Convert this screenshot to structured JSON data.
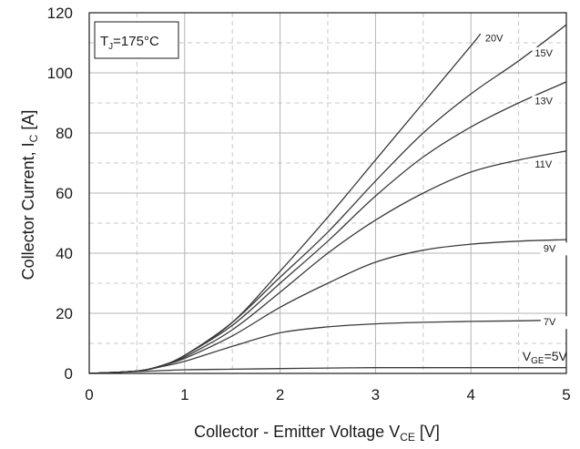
{
  "chart_data": {
    "type": "line",
    "xlabel": "Collector - Emitter Voltage V",
    "xlabel_sub": "CE",
    "xlabel_unit": " [V]",
    "ylabel": "Collector Current, I",
    "ylabel_sub": "C",
    "ylabel_unit": " [A]",
    "xlim": [
      0,
      5
    ],
    "ylim": [
      0,
      120
    ],
    "xticks": [
      "0",
      "1",
      "2",
      "3",
      "4",
      "5"
    ],
    "yticks": [
      "0",
      "20",
      "40",
      "60",
      "80",
      "100",
      "120"
    ],
    "grid": true,
    "annotation": {
      "prefix": "T",
      "sub": "J",
      "suffix": "=175°C"
    },
    "series": [
      {
        "name": "20V",
        "label": "20V",
        "x": [
          0,
          0.5,
          0.75,
          1,
          1.5,
          2,
          2.5,
          3,
          3.5,
          4,
          4.1
        ],
        "y": [
          0,
          0.8,
          2.5,
          6,
          17,
          34,
          52,
          71,
          90,
          109,
          113
        ]
      },
      {
        "name": "15V",
        "label": "15V",
        "x": [
          0,
          0.5,
          0.75,
          1,
          1.5,
          2,
          2.5,
          3,
          3.5,
          4,
          4.5,
          5
        ],
        "y": [
          0,
          0.8,
          2.5,
          6,
          17,
          32,
          47,
          64,
          80,
          93,
          104,
          116
        ]
      },
      {
        "name": "13V",
        "label": "13V",
        "x": [
          0,
          0.5,
          0.75,
          1,
          1.5,
          2,
          2.5,
          3,
          3.5,
          4,
          4.5,
          5
        ],
        "y": [
          0,
          0.8,
          2.5,
          6,
          16,
          30,
          44,
          59,
          72,
          82,
          90,
          97
        ]
      },
      {
        "name": "11V",
        "label": "11V",
        "x": [
          0,
          0.5,
          0.75,
          1,
          1.5,
          2,
          2.5,
          3,
          3.5,
          4,
          4.5,
          5
        ],
        "y": [
          0,
          0.8,
          2.5,
          5.5,
          14.5,
          27,
          40,
          51,
          60,
          67,
          71,
          74
        ]
      },
      {
        "name": "9V",
        "label": "9V",
        "x": [
          0,
          0.5,
          0.75,
          1,
          1.5,
          2,
          2.5,
          3,
          3.5,
          4,
          4.5,
          5
        ],
        "y": [
          0,
          0.8,
          2.5,
          5,
          12.5,
          22,
          30,
          37,
          41,
          43,
          44,
          44.5
        ]
      },
      {
        "name": "7V",
        "label": "7V",
        "x": [
          0,
          0.5,
          0.75,
          1,
          1.5,
          2,
          2.5,
          3,
          3.5,
          4,
          4.5,
          5
        ],
        "y": [
          0,
          0.8,
          2.2,
          4,
          9,
          13.5,
          15.5,
          16.5,
          17,
          17.3,
          17.5,
          17.8
        ]
      },
      {
        "name": "VGE=5V",
        "label_prefix": "V",
        "label_sub": "GE",
        "label_suffix": "=5V",
        "x": [
          0,
          0.5,
          1,
          1.5,
          2,
          2.5,
          3,
          3.5,
          4,
          4.5,
          5
        ],
        "y": [
          0,
          0.6,
          1.2,
          1.4,
          1.6,
          1.8,
          1.9,
          1.9,
          1.9,
          1.9,
          1.9
        ]
      }
    ]
  }
}
